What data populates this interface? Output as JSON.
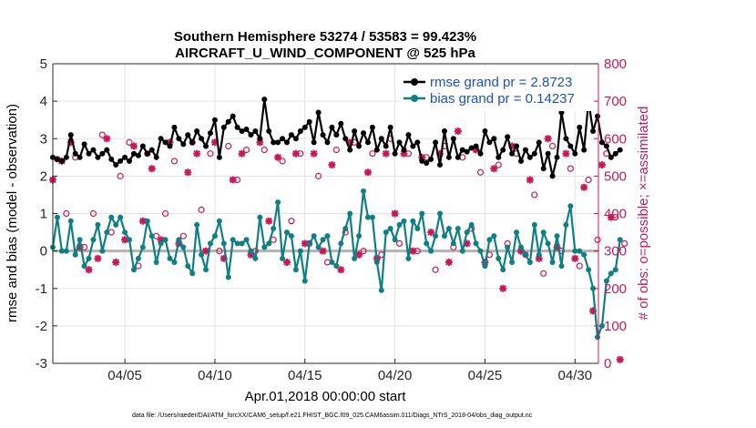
{
  "chart_data": {
    "type": "line",
    "title": "Southern Hemisphere 53274 / 53583 = 99.423%",
    "subtitle": "AIRCRAFT_U_WIND_COMPONENT @ 525 hPa",
    "xlabel": "Apr.01,2018 00:00:00 start",
    "ylabel_left": "rmse and bias (model - observation)",
    "ylabel_right": "# of obs: o=possible; ×=assimilated",
    "xlim": [
      1,
      31.3
    ],
    "ylim_left": [
      -3,
      5
    ],
    "ylim_right": [
      0,
      800
    ],
    "x_ticks": [
      5,
      10,
      15,
      20,
      25,
      30
    ],
    "x_tick_labels": [
      "04/05",
      "04/10",
      "04/15",
      "04/20",
      "04/25",
      "04/30"
    ],
    "y_ticks_left": [
      -3,
      -2,
      -1,
      0,
      1,
      2,
      3,
      4,
      5
    ],
    "y_tick_labels_left": [
      "-3",
      "-2",
      "-1",
      "0",
      "1",
      "2",
      "3",
      "4",
      "5"
    ],
    "y_ticks_right": [
      0,
      100,
      200,
      300,
      400,
      500,
      600,
      700,
      800
    ],
    "y_tick_labels_right": [
      "0",
      "100",
      "200",
      "300",
      "400",
      "500",
      "600",
      "700",
      "800"
    ],
    "legend_position": "top-right",
    "footnote": "data file: /Users/raeder/DAI/ATM_forcXX/CAM6_setup/f.e21.FHIST_BGC.f09_025.CAM6assim.011/Diags_NTrS_2018-04/obs_diag_output.nc",
    "x_start": 1.0,
    "x_step": 0.25,
    "series": [
      {
        "name": "rmse grand pr = 2.8723",
        "axis": "left",
        "color": "#000000",
        "values": [
          2.5,
          2.45,
          2.4,
          2.5,
          3.1,
          2.6,
          2.5,
          2.85,
          2.6,
          2.7,
          2.5,
          2.6,
          2.7,
          2.45,
          2.3,
          2.4,
          2.5,
          2.4,
          2.6,
          2.55,
          2.8,
          2.6,
          2.7,
          2.5,
          3.0,
          2.9,
          2.8,
          3.3,
          3.0,
          2.85,
          3.1,
          2.9,
          3.2,
          3.0,
          2.8,
          3.15,
          3.5,
          2.5,
          3.3,
          3.45,
          3.6,
          3.3,
          3.2,
          3.25,
          3.1,
          3.2,
          3.0,
          4.05,
          3.2,
          2.9,
          2.9,
          3.0,
          2.9,
          3.1,
          3.0,
          3.2,
          3.3,
          3.45,
          2.9,
          3.7,
          3.1,
          2.9,
          3.3,
          3.1,
          3.4,
          3.0,
          2.7,
          3.2,
          2.8,
          3.15,
          2.9,
          3.3,
          2.7,
          3.0,
          2.8,
          3.3,
          2.6,
          2.9,
          2.7,
          3.1,
          2.8,
          2.9,
          2.4,
          2.35,
          2.45,
          2.9,
          2.3,
          3.2,
          2.5,
          3.0,
          2.5,
          2.7,
          2.65,
          2.75,
          2.8,
          2.6,
          3.2,
          2.9,
          3.0,
          2.5,
          2.7,
          3.05,
          2.6,
          2.8,
          2.4,
          2.7,
          2.5,
          2.6,
          2.9,
          2.2,
          2.6,
          2.0,
          2.5,
          3.7,
          3.0,
          2.8,
          2.6,
          3.3,
          2.7,
          4.0,
          3.2,
          3.6,
          2.9,
          2.8,
          2.5,
          2.6,
          2.7
        ]
      },
      {
        "name": "bias grand pr = 0.14237",
        "axis": "left",
        "color": "#0f7f83",
        "values": [
          0.1,
          0.9,
          0.0,
          0.0,
          0.8,
          -0.1,
          0.3,
          -0.4,
          -0.2,
          0.3,
          0.7,
          0.0,
          0.5,
          0.9,
          0.7,
          0.9,
          0.5,
          0.3,
          -0.5,
          -0.2,
          0.1,
          0.8,
          0.4,
          -0.3,
          0.2,
          0.3,
          -0.2,
          -0.3,
          0.3,
          0.1,
          -0.4,
          -0.6,
          0.7,
          -0.1,
          -0.5,
          0.2,
          0.4,
          0.8,
          0.2,
          -0.7,
          0.3,
          0.2,
          0.2,
          0.3,
          0.0,
          -0.2,
          0.9,
          0.1,
          0.2,
          0.6,
          1.3,
          -0.2,
          0.5,
          0.4,
          -0.5,
          0.0,
          -0.8,
          0.2,
          0.4,
          0.1,
          0.3,
          0.4,
          -0.3,
          -0.4,
          0.2,
          0.6,
          1.0,
          -0.2,
          0.4,
          1.6,
          0.9,
          0.9,
          -0.3,
          -1.05,
          0.5,
          0.6,
          0.3,
          0.7,
          0.8,
          -0.2,
          0.8,
          0.6,
          1.0,
          0.2,
          0.0,
          0.4,
          1.0,
          0.4,
          0.6,
          0.2,
          0.6,
          0.0,
          0.5,
          0.7,
          0.2,
          0.0,
          -0.4,
          0.3,
          0.4,
          -0.2,
          -0.5,
          0.1,
          -0.3,
          0.5,
          0.1,
          -0.1,
          -0.3,
          0.7,
          -0.1,
          0.5,
          0.2,
          -0.3,
          0.4,
          -0.4,
          0.7,
          1.2,
          0.0,
          0.0,
          -0.1,
          -0.5,
          -1.0,
          -2.3,
          -2.0,
          -0.8,
          -0.6,
          -0.5,
          0.3
        ]
      },
      {
        "name": "assimilated",
        "axis": "right",
        "color": "#c8185a",
        "marker": "*",
        "x_start": 1.0,
        "x_step": 0.5,
        "values": [
          490,
          540,
          590,
          310,
          250,
          280,
          600,
          270,
          330,
          580,
          380,
          520,
          330,
          590,
          320,
          510,
          560,
          300,
          590,
          280,
          490,
          560,
          290,
          590,
          380,
          550,
          270,
          560,
          320,
          560,
          300,
          530,
          250,
          590,
          290,
          510,
          280,
          560,
          400,
          560,
          300,
          550,
          350,
          560,
          270,
          620,
          320,
          570,
          270,
          520,
          200,
          580,
          300,
          490,
          280,
          600,
          310,
          560,
          280,
          470,
          140,
          530,
          390,
          10
        ]
      },
      {
        "name": "possible",
        "axis": "right",
        "color": "#c8185a",
        "marker": "o",
        "x_start": 1.25,
        "x_step": 0.5,
        "values": [
          545,
          400,
          550,
          310,
          400,
          610,
          350,
          500,
          590,
          260,
          560,
          340,
          400,
          540,
          340,
          590,
          410,
          560,
          300,
          580,
          490,
          570,
          300,
          570,
          330,
          540,
          380,
          560,
          320,
          500,
          270,
          570,
          350,
          590,
          300,
          560,
          290,
          600,
          320,
          560,
          300,
          550,
          250,
          580,
          310,
          550,
          360,
          510,
          290,
          530,
          320,
          560,
          290,
          450,
          240,
          580,
          300,
          520,
          260,
          490,
          330,
          560,
          390,
          320
        ]
      }
    ]
  }
}
